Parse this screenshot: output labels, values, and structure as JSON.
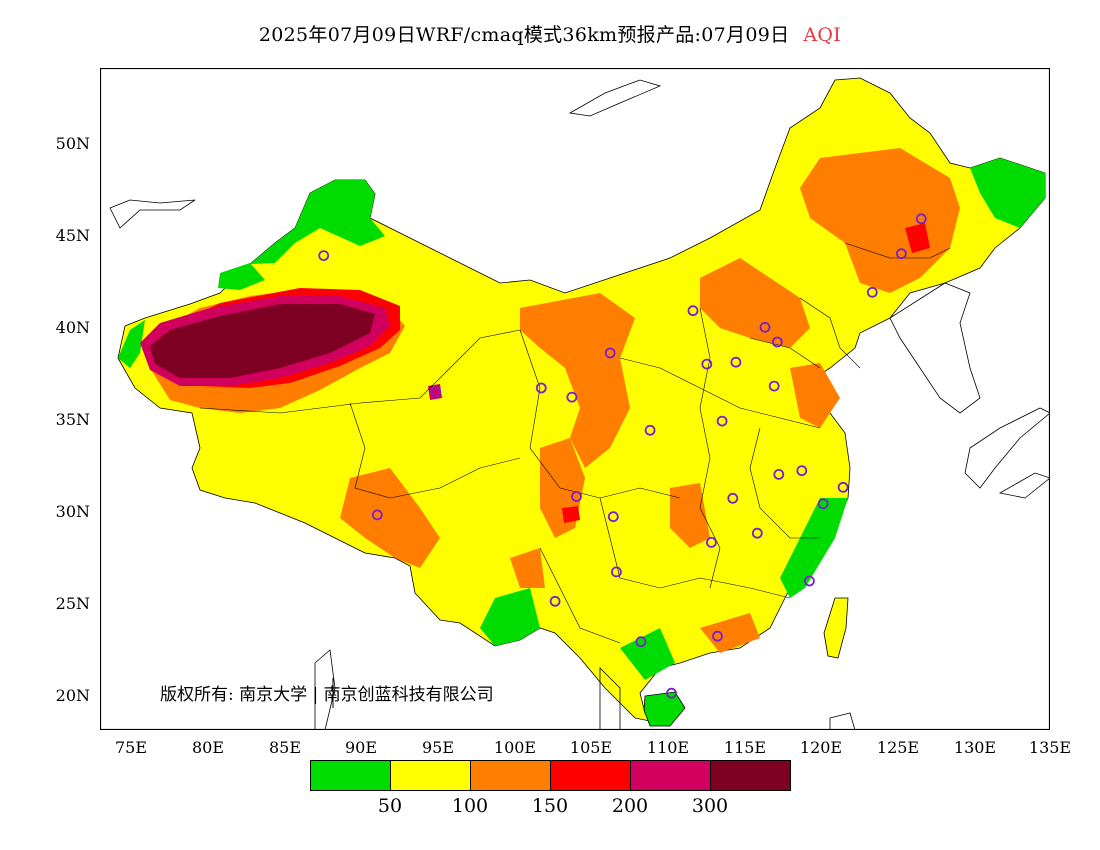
{
  "header": {
    "title": "2025年07月09日WRF/cmaq模式36km预报产品:07月09日",
    "variable": "AQI",
    "variable_color": "#e8383f"
  },
  "map": {
    "lon_range": [
      73,
      135
    ],
    "lat_range": [
      18,
      54
    ],
    "lat_ticks": [
      "50N",
      "45N",
      "40N",
      "35N",
      "30N",
      "25N",
      "20N"
    ],
    "lon_ticks": [
      "75E",
      "80E",
      "85E",
      "90E",
      "95E",
      "100E",
      "105E",
      "110E",
      "115E",
      "120E",
      "125E",
      "130E",
      "135E"
    ],
    "copyright": "版权所有: 南京大学 | 南京创蓝科技有限公司"
  },
  "legend": {
    "colors": [
      "#00dc00",
      "#ffff00",
      "#ff7e00",
      "#ff0000",
      "#d1005f",
      "#7e0023"
    ],
    "labels": [
      "50",
      "100",
      "150",
      "200",
      "300"
    ]
  },
  "stations": [
    [
      87.6,
      43.8
    ],
    [
      91.1,
      29.7
    ],
    [
      94.9,
      36.4
    ],
    [
      101.8,
      36.6
    ],
    [
      103.8,
      36.1
    ],
    [
      106.3,
      38.5
    ],
    [
      111.7,
      40.8
    ],
    [
      116.4,
      39.9
    ],
    [
      117.2,
      39.1
    ],
    [
      114.5,
      38.0
    ],
    [
      112.6,
      37.9
    ],
    [
      117.0,
      36.7
    ],
    [
      113.6,
      34.8
    ],
    [
      108.9,
      34.3
    ],
    [
      104.1,
      30.7
    ],
    [
      106.5,
      29.6
    ],
    [
      102.7,
      25.0
    ],
    [
      106.7,
      26.6
    ],
    [
      108.3,
      22.8
    ],
    [
      113.3,
      23.1
    ],
    [
      112.9,
      28.2
    ],
    [
      115.9,
      28.7
    ],
    [
      114.3,
      30.6
    ],
    [
      117.3,
      31.9
    ],
    [
      118.8,
      32.1
    ],
    [
      120.2,
      30.3
    ],
    [
      121.5,
      31.2
    ],
    [
      119.3,
      26.1
    ],
    [
      110.3,
      20.0
    ],
    [
      123.4,
      41.8
    ],
    [
      125.3,
      43.9
    ],
    [
      126.6,
      45.8
    ]
  ]
}
